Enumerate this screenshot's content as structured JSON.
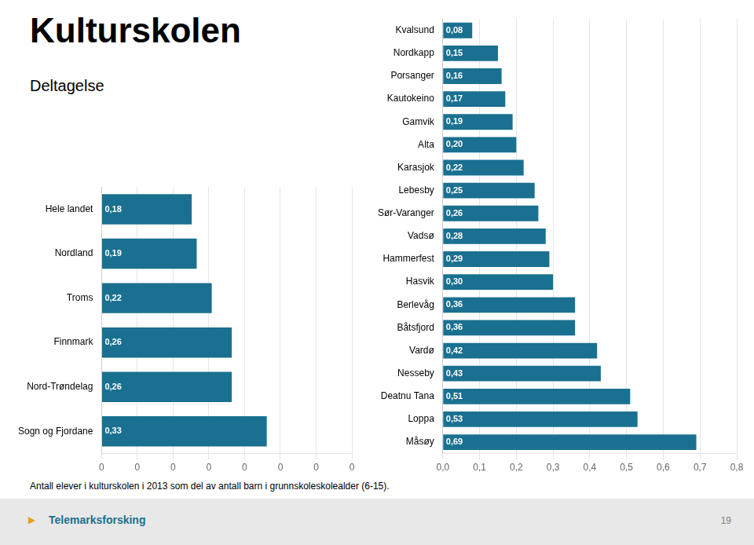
{
  "title": "Kulturskolen",
  "subtitle": "Deltagelse",
  "annotations": [
    "Antall elever i kulturskolen i 2013 som del av antall barn i grunnskoleskolealder (6-15).",
    "▶",
    "Telemarksforsking",
    "19"
  ],
  "chart_data": [
    {
      "type": "bar",
      "orientation": "horizontal",
      "color": "#1a7090",
      "grid": true,
      "data_labels": true,
      "categories": [
        "Hele landet",
        "Nordland",
        "Troms",
        "Finnmark",
        "Nord-Trøndelag",
        "Sogn og Fjordane"
      ],
      "values": [
        0.18,
        0.19,
        0.22,
        0.26,
        0.26,
        0.33
      ],
      "value_labels": [
        "0,18",
        "0,19",
        "0,22",
        "0,26",
        "0,26",
        "0,33"
      ],
      "xlim": [
        0,
        0.5
      ],
      "xticks": [
        0,
        {
          "value": 0.07142857142857142,
          "label": "0"
        },
        {
          "value": 0.14285714285714285,
          "label": "0"
        },
        {
          "value": 0.21428571428571427,
          "label": "0"
        },
        {
          "value": 0.2857142857142857,
          "label": "0"
        },
        {
          "value": 0.3571428571428571,
          "label": "0"
        },
        {
          "value": 0.42857142857142855,
          "label": "0"
        },
        {
          "value": 0.5,
          "label": "0"
        }
      ]
    },
    {
      "type": "bar",
      "orientation": "horizontal",
      "color": "#1a7090",
      "grid": true,
      "data_labels": true,
      "categories": [
        "Kvalsund",
        "Nordkapp",
        "Porsanger",
        "Kautokeino",
        "Gamvik",
        "Alta",
        "Karasjok",
        "Lebesby",
        "Sør-Varanger",
        "Vadsø",
        "Hammerfest",
        "Hasvik",
        "Berlevåg",
        "Båtsfjord",
        "Vardø",
        "Nesseby",
        "Deatnu Tana",
        "Loppa",
        "Måsøy"
      ],
      "values": [
        0.08,
        0.15,
        0.16,
        0.17,
        0.19,
        0.2,
        0.22,
        0.25,
        0.26,
        0.28,
        0.29,
        0.3,
        0.36,
        0.36,
        0.42,
        0.43,
        0.51,
        0.53,
        0.69
      ],
      "value_labels": [
        "0,08",
        "0,15",
        "0,16",
        "0,17",
        "0,19",
        "0,20",
        "0,22",
        "0,25",
        "0,26",
        "0,28",
        "0,29",
        "0,30",
        "0,36",
        "0,36",
        "0,42",
        "0,43",
        "0,51",
        "0,53",
        "0,69"
      ],
      "xlim": [
        0.0,
        0.8
      ],
      "xticks": [
        {
          "value": 0.0,
          "label": "0,0"
        },
        {
          "value": 0.1,
          "label": "0,1"
        },
        {
          "value": 0.2,
          "label": "0,2"
        },
        {
          "value": 0.3,
          "label": "0,3"
        },
        {
          "value": 0.4,
          "label": "0,4"
        },
        {
          "value": 0.5,
          "label": "0,5"
        },
        {
          "value": 0.6,
          "label": "0,6"
        },
        {
          "value": 0.7,
          "label": "0,7"
        },
        {
          "value": 0.8,
          "label": "0,8"
        }
      ]
    }
  ]
}
